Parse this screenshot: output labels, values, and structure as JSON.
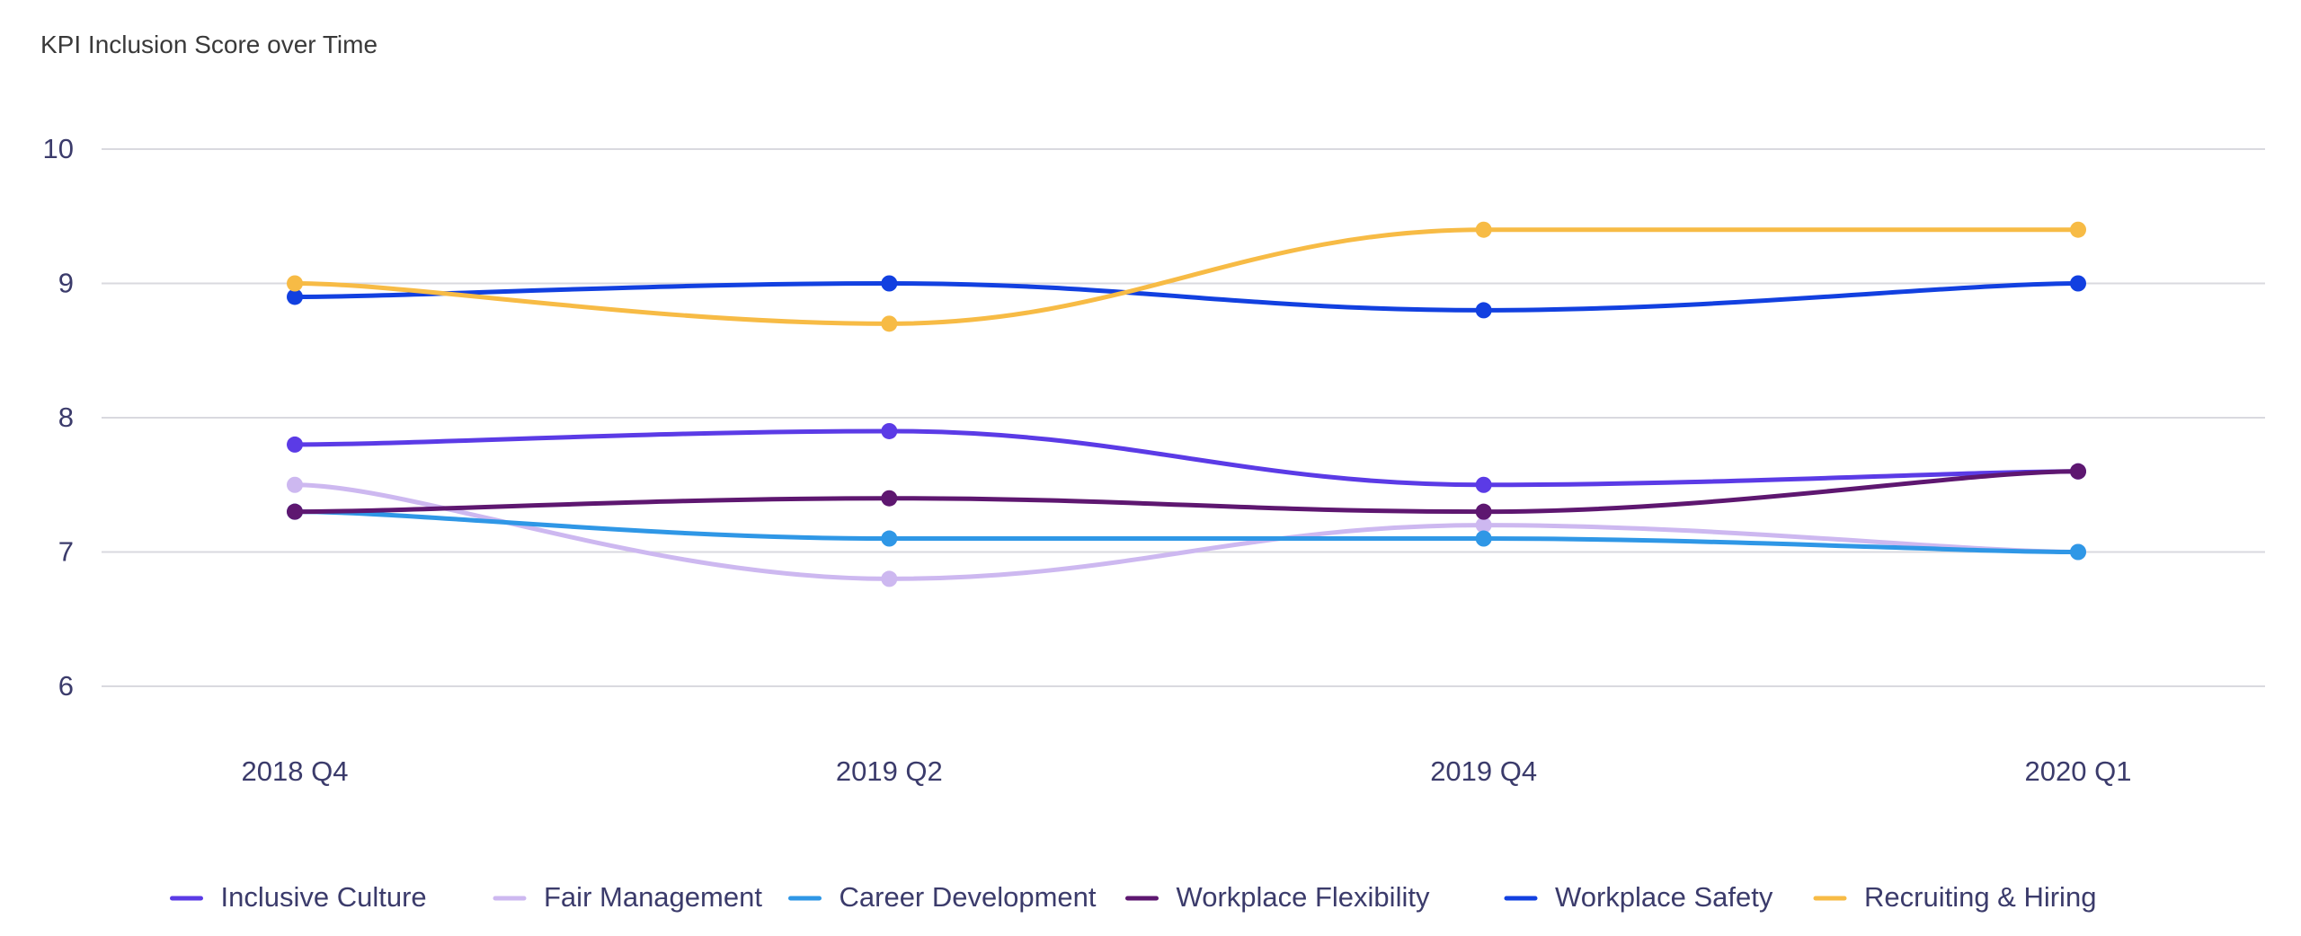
{
  "chart_data": {
    "type": "line",
    "title": "KPI Inclusion Score over Time",
    "xlabel": "",
    "ylabel": "",
    "x": [
      "2018 Q4",
      "2019 Q2",
      "2019 Q4",
      "2020 Q1"
    ],
    "ylim": [
      6,
      10
    ],
    "yticks": [
      6,
      7,
      8,
      9,
      10
    ],
    "grid": true,
    "legend_position": "bottom",
    "series": [
      {
        "name": "Inclusive Culture",
        "color": "#5b3be6",
        "values": [
          7.8,
          7.9,
          7.5,
          7.6
        ]
      },
      {
        "name": "Fair Management",
        "color": "#cdb8f0",
        "values": [
          7.5,
          6.8,
          7.2,
          7.0
        ]
      },
      {
        "name": "Career Development",
        "color": "#2f97e6",
        "values": [
          7.3,
          7.1,
          7.1,
          7.0
        ]
      },
      {
        "name": "Workplace Flexibility",
        "color": "#5e1770",
        "values": [
          7.3,
          7.4,
          7.3,
          7.6
        ]
      },
      {
        "name": "Workplace Safety",
        "color": "#1240e0",
        "values": [
          8.9,
          9.0,
          8.8,
          9.0
        ]
      },
      {
        "name": "Recruiting & Hiring",
        "color": "#f7bb45",
        "values": [
          9.0,
          8.7,
          9.4,
          9.4
        ]
      }
    ]
  }
}
